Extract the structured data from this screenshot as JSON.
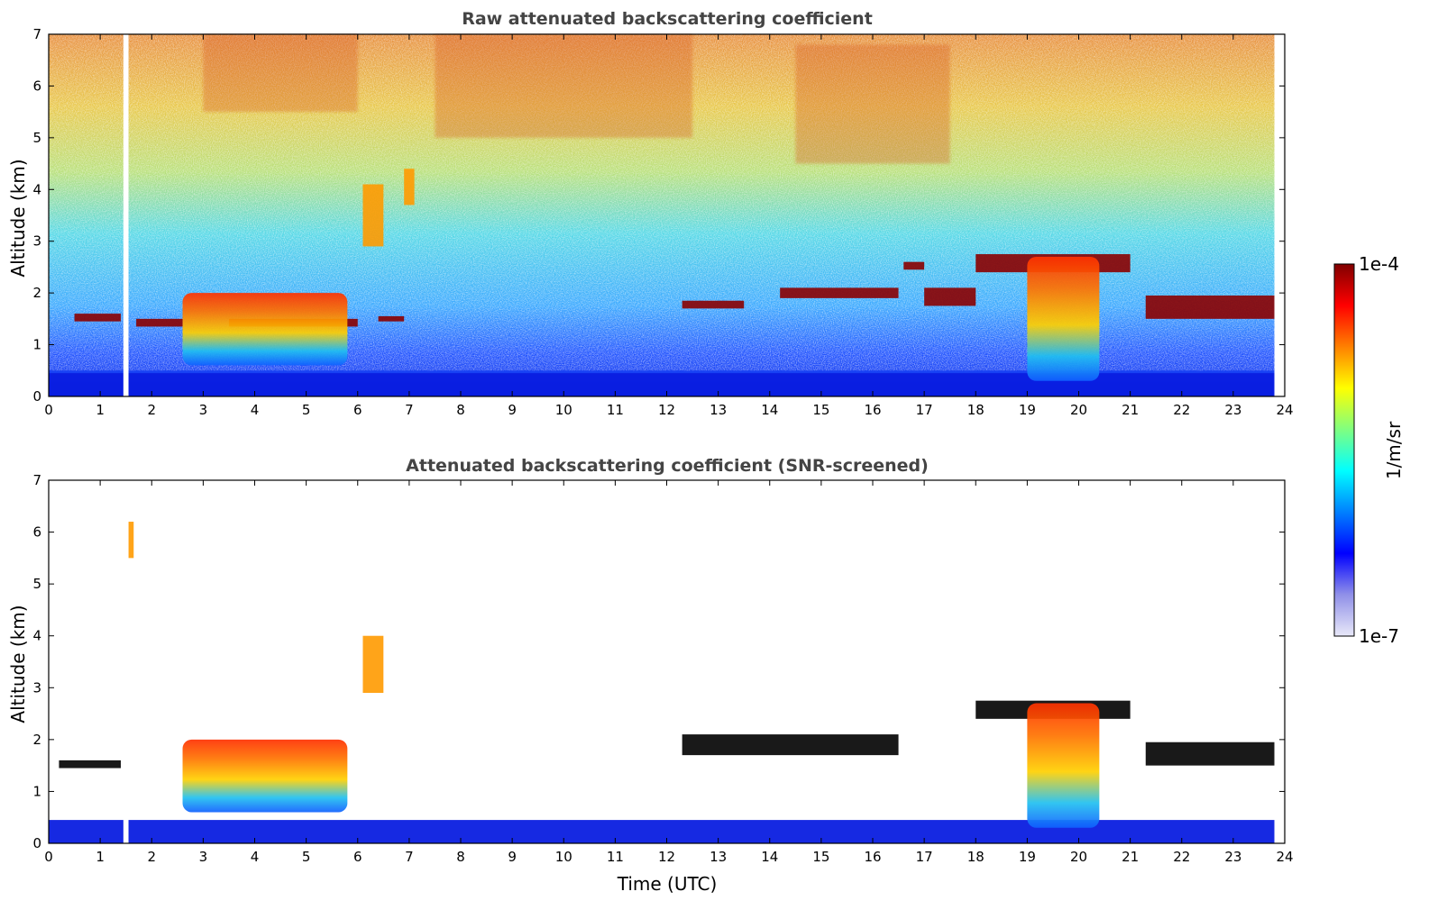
{
  "chart_data": [
    {
      "type": "heatmap",
      "title": "Raw attenuated backscattering coefficient",
      "xlabel": "",
      "ylabel": "Altitude (km)",
      "xlim": [
        0,
        24
      ],
      "ylim": [
        0,
        7
      ],
      "x_ticks": [
        "0",
        "1",
        "2",
        "3",
        "4",
        "5",
        "6",
        "7",
        "8",
        "9",
        "10",
        "11",
        "12",
        "13",
        "14",
        "15",
        "16",
        "17",
        "18",
        "19",
        "20",
        "21",
        "22",
        "23",
        "24"
      ],
      "y_ticks": [
        "0",
        "1",
        "2",
        "3",
        "4",
        "5",
        "6",
        "7"
      ],
      "data_gap": {
        "x_start": 1.45,
        "x_end": 1.55
      },
      "features": [
        {
          "name": "surface_aerosol",
          "x": [
            0,
            23.8
          ],
          "y": [
            0,
            0.45
          ],
          "level": "low"
        },
        {
          "name": "noise_background",
          "x": [
            0,
            23.8
          ],
          "y": [
            0.5,
            7
          ],
          "level": "noisy"
        },
        {
          "name": "cloud_layer",
          "x": [
            0.5,
            1.4
          ],
          "y": [
            1.45,
            1.6
          ],
          "level": "max"
        },
        {
          "name": "cloud_layer",
          "x": [
            1.7,
            2.6
          ],
          "y": [
            1.35,
            1.5
          ],
          "level": "max"
        },
        {
          "name": "cloud_layer",
          "x": [
            3.5,
            6.0
          ],
          "y": [
            1.35,
            1.5
          ],
          "level": "max"
        },
        {
          "name": "cloud_layer",
          "x": [
            6.4,
            6.9
          ],
          "y": [
            1.45,
            1.55
          ],
          "level": "max"
        },
        {
          "name": "convective_cloud",
          "x": [
            2.6,
            5.8
          ],
          "y": [
            0.6,
            2.0
          ],
          "level": "high"
        },
        {
          "name": "elevated_aerosol",
          "x": [
            6.1,
            6.5
          ],
          "y": [
            2.9,
            4.1
          ],
          "level": "medium"
        },
        {
          "name": "elevated_aerosol",
          "x": [
            6.9,
            7.1
          ],
          "y": [
            3.7,
            4.4
          ],
          "level": "medium"
        },
        {
          "name": "cloud_layer",
          "x": [
            12.3,
            13.5
          ],
          "y": [
            1.7,
            1.85
          ],
          "level": "max"
        },
        {
          "name": "cloud_layer",
          "x": [
            14.2,
            16.5
          ],
          "y": [
            1.9,
            2.1
          ],
          "level": "max"
        },
        {
          "name": "cloud_layer",
          "x": [
            17.0,
            18.0
          ],
          "y": [
            1.75,
            2.1
          ],
          "level": "max"
        },
        {
          "name": "cloud_layer",
          "x": [
            16.6,
            17.0
          ],
          "y": [
            2.45,
            2.6
          ],
          "level": "max"
        },
        {
          "name": "cloud_layer",
          "x": [
            18.0,
            21.0
          ],
          "y": [
            2.4,
            2.75
          ],
          "level": "max"
        },
        {
          "name": "convective_cloud",
          "x": [
            19.0,
            20.4
          ],
          "y": [
            0.3,
            2.7
          ],
          "level": "high"
        },
        {
          "name": "cloud_layer",
          "x": [
            21.3,
            23.8
          ],
          "y": [
            1.5,
            1.95
          ],
          "level": "max"
        }
      ]
    },
    {
      "type": "heatmap",
      "title": "Attenuated backscattering coefficient (SNR-screened)",
      "xlabel": "Time (UTC)",
      "ylabel": "Altitude (km)",
      "xlim": [
        0,
        24
      ],
      "ylim": [
        0,
        7
      ],
      "x_ticks": [
        "0",
        "1",
        "2",
        "3",
        "4",
        "5",
        "6",
        "7",
        "8",
        "9",
        "10",
        "11",
        "12",
        "13",
        "14",
        "15",
        "16",
        "17",
        "18",
        "19",
        "20",
        "21",
        "22",
        "23",
        "24"
      ],
      "y_ticks": [
        "0",
        "1",
        "2",
        "3",
        "4",
        "5",
        "6",
        "7"
      ],
      "data_gap": {
        "x_start": 1.45,
        "x_end": 1.55
      },
      "features": [
        {
          "name": "surface_aerosol",
          "x": [
            0,
            23.8
          ],
          "y": [
            0,
            0.45
          ],
          "level": "low"
        },
        {
          "name": "screened_noise",
          "x": [
            0,
            23.8
          ],
          "y": [
            0.5,
            7
          ],
          "level": "none"
        },
        {
          "name": "cloud_layer",
          "x": [
            0.2,
            1.4
          ],
          "y": [
            1.45,
            1.6
          ],
          "level": "saturated"
        },
        {
          "name": "convective_cloud",
          "x": [
            2.6,
            5.8
          ],
          "y": [
            0.6,
            2.0
          ],
          "level": "high"
        },
        {
          "name": "elevated_aerosol",
          "x": [
            6.1,
            6.5
          ],
          "y": [
            2.9,
            4.0
          ],
          "level": "medium"
        },
        {
          "name": "elevated_aerosol",
          "x": [
            1.55,
            1.65
          ],
          "y": [
            5.5,
            6.2
          ],
          "level": "medium"
        },
        {
          "name": "cloud_layer",
          "x": [
            12.3,
            16.5
          ],
          "y": [
            1.7,
            2.1
          ],
          "level": "saturated"
        },
        {
          "name": "cloud_layer",
          "x": [
            18.0,
            21.0
          ],
          "y": [
            2.4,
            2.75
          ],
          "level": "saturated"
        },
        {
          "name": "convective_cloud",
          "x": [
            19.0,
            20.4
          ],
          "y": [
            0.3,
            2.7
          ],
          "level": "high"
        },
        {
          "name": "cloud_layer",
          "x": [
            21.3,
            23.8
          ],
          "y": [
            1.5,
            1.95
          ],
          "level": "saturated"
        }
      ]
    }
  ],
  "colorbar": {
    "label": "1/m/sr",
    "max_label": "1e-4",
    "min_label": "1e-7",
    "scale": "log",
    "range": [
      1e-07,
      0.0001
    ],
    "colormap": "jet",
    "colors": [
      "#e8e8f8",
      "#9090e8",
      "#0000ff",
      "#0080ff",
      "#00ffff",
      "#80ff80",
      "#ffff00",
      "#ff8000",
      "#ff0000",
      "#800000"
    ]
  }
}
